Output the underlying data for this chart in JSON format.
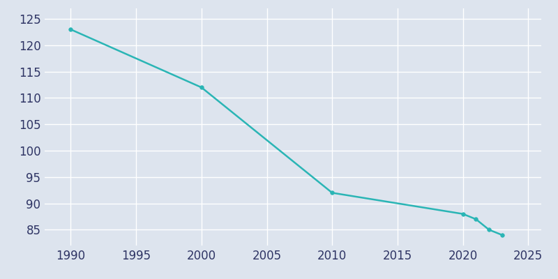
{
  "years": [
    1990,
    2000,
    2010,
    2020,
    2021,
    2022,
    2023
  ],
  "population": [
    123,
    112,
    92,
    88,
    87,
    85,
    84
  ],
  "line_color": "#2ab5b5",
  "marker": "o",
  "marker_size": 4,
  "background_color": "#dde4ee",
  "plot_bg_color": "#dde4ee",
  "grid_color": "#ffffff",
  "xlim": [
    1988,
    2026
  ],
  "ylim": [
    82,
    127
  ],
  "xticks": [
    1990,
    1995,
    2000,
    2005,
    2010,
    2015,
    2020,
    2025
  ],
  "yticks": [
    85,
    90,
    95,
    100,
    105,
    110,
    115,
    120,
    125
  ],
  "tick_color": "#2e3464",
  "tick_fontsize": 12,
  "linewidth": 1.8
}
